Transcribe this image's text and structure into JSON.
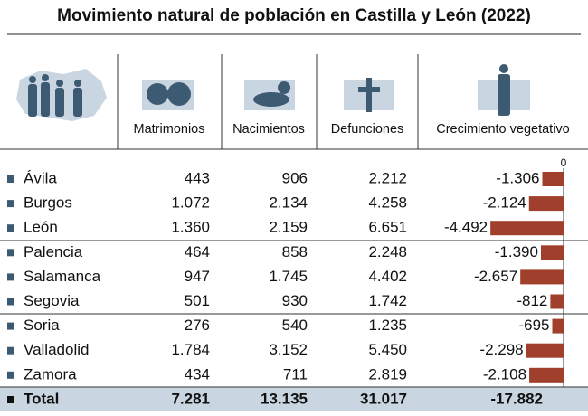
{
  "title": "Movimiento natural de población en Castilla y León (2022)",
  "table": {
    "columns": [
      "Matrimonios",
      "Nacimientos",
      "Defunciones",
      "Crecimiento vegetativo"
    ],
    "rows": [
      {
        "name": "Ávila",
        "cells": [
          "443",
          "906",
          "2.212"
        ]
      },
      {
        "name": "Burgos",
        "cells": [
          "1.072",
          "2.134",
          "4.258"
        ]
      },
      {
        "name": "León",
        "cells": [
          "1.360",
          "2.159",
          "6.651"
        ]
      },
      {
        "name": "Palencia",
        "cells": [
          "464",
          "858",
          "2.248"
        ]
      },
      {
        "name": "Salamanca",
        "cells": [
          "947",
          "1.745",
          "4.402"
        ]
      },
      {
        "name": "Segovia",
        "cells": [
          "501",
          "930",
          "1.742"
        ]
      },
      {
        "name": "Soria",
        "cells": [
          "276",
          "540",
          "1.235"
        ]
      },
      {
        "name": "Valladolid",
        "cells": [
          "1.784",
          "3.152",
          "5.450"
        ]
      },
      {
        "name": "Zamora",
        "cells": [
          "434",
          "711",
          "2.819"
        ]
      }
    ],
    "total": {
      "name": "Total",
      "cells": [
        "7.281",
        "13.135",
        "31.017",
        "-17.882"
      ]
    }
  },
  "chart_data": {
    "type": "bar",
    "orientation": "horizontal",
    "color": "#a0402c",
    "values": [
      -1306,
      -2124,
      -4492,
      -1390,
      -2657,
      -812,
      -695,
      -2298,
      -2108
    ],
    "value_labels": [
      "-1.306",
      "-2.124",
      "-4.492",
      "-1.390",
      "-2.657",
      "-812",
      "-695",
      "-2.298",
      "-2.108"
    ],
    "xlim": [
      -5000,
      0
    ],
    "xticks": [
      0
    ]
  }
}
